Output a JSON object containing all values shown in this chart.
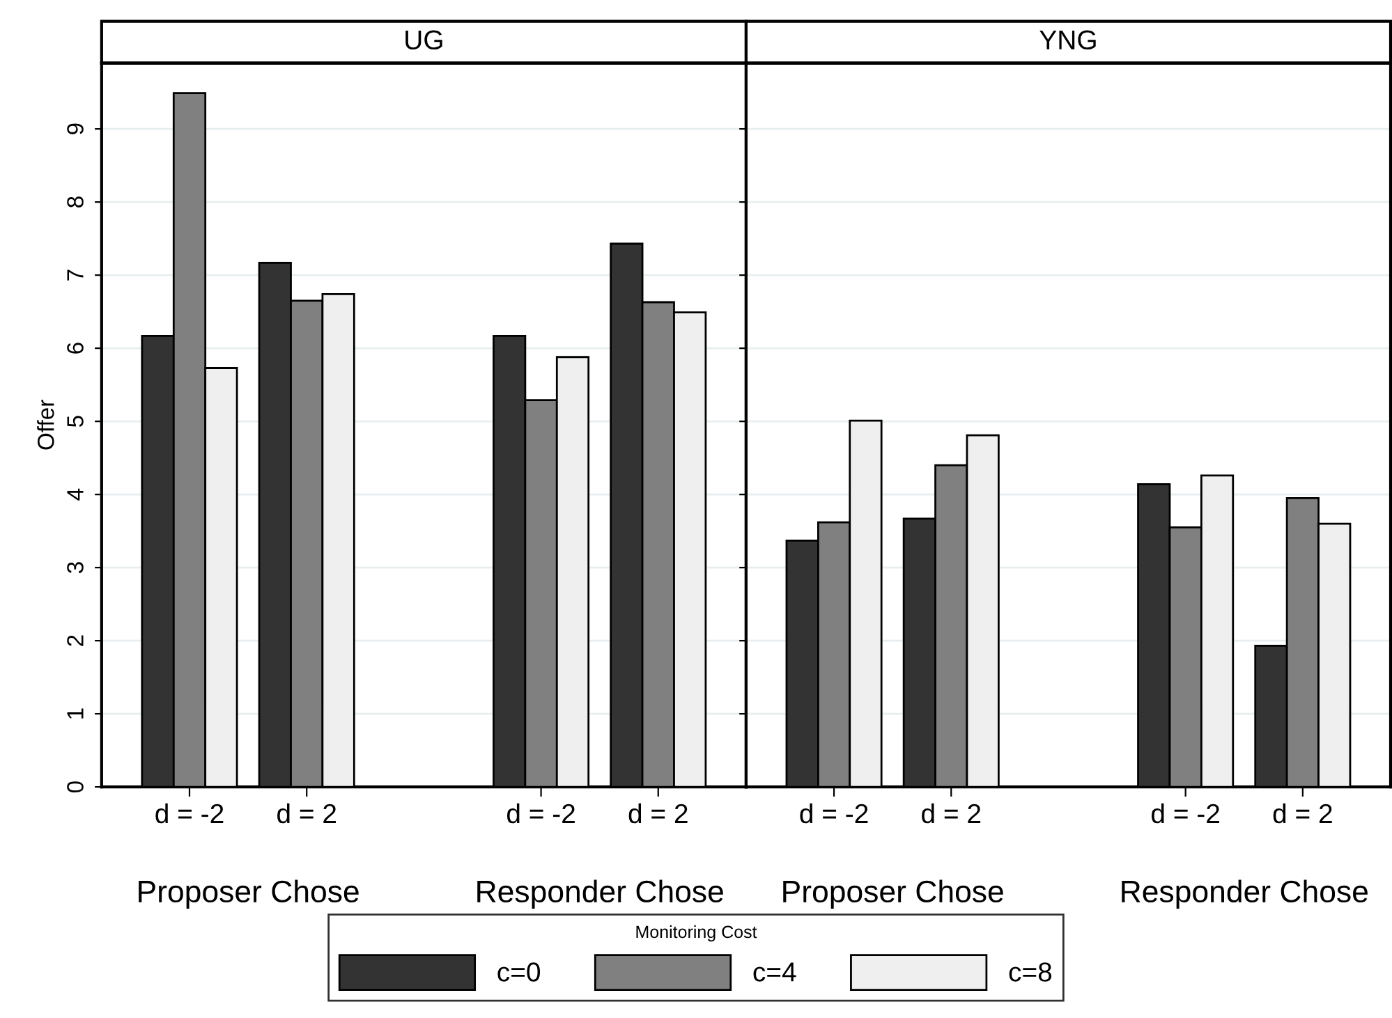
{
  "chart_data": [
    {
      "type": "bar",
      "title": "UG",
      "ylabel": "Offer",
      "categories": [
        "d = -2",
        "d = 2",
        null,
        "d = -2",
        "d = 2"
      ],
      "ylim": [
        0,
        9.9
      ],
      "yticks": [
        0,
        1,
        2,
        3,
        4,
        5,
        6,
        7,
        8,
        9
      ],
      "grid": "y",
      "legend": "bottom",
      "legend_title": "Monitoring Cost",
      "annotations": [
        "Proposer Chose",
        "Responder Chose"
      ],
      "series": [
        {
          "name": "c=0",
          "color": "#333333",
          "values": [
            6.17,
            7.17,
            null,
            6.17,
            7.43
          ]
        },
        {
          "name": "c=4",
          "color": "#808080",
          "values": [
            9.49,
            6.65,
            null,
            5.29,
            6.63
          ]
        },
        {
          "name": "c=8",
          "color": "#efefef",
          "values": [
            5.73,
            6.74,
            null,
            5.88,
            6.49
          ]
        }
      ]
    },
    {
      "type": "bar",
      "title": "YNG",
      "categories": [
        "d = -2",
        "d = 2",
        null,
        "d = -2",
        "d = 2"
      ],
      "ylim": [
        0,
        9.9
      ],
      "yticks": [
        0,
        1,
        2,
        3,
        4,
        5,
        6,
        7,
        8,
        9
      ],
      "grid": "y",
      "tick_labels": "x",
      "annotations": [
        "Proposer Chose",
        "Responder Chose"
      ],
      "series": [
        {
          "color": "#333333",
          "values": [
            3.37,
            3.67,
            null,
            4.14,
            1.93
          ]
        },
        {
          "color": "#808080",
          "values": [
            3.62,
            4.4,
            null,
            3.55,
            3.95
          ]
        },
        {
          "color": "#efefef",
          "values": [
            5.01,
            4.81,
            null,
            4.26,
            3.6
          ]
        }
      ]
    }
  ]
}
